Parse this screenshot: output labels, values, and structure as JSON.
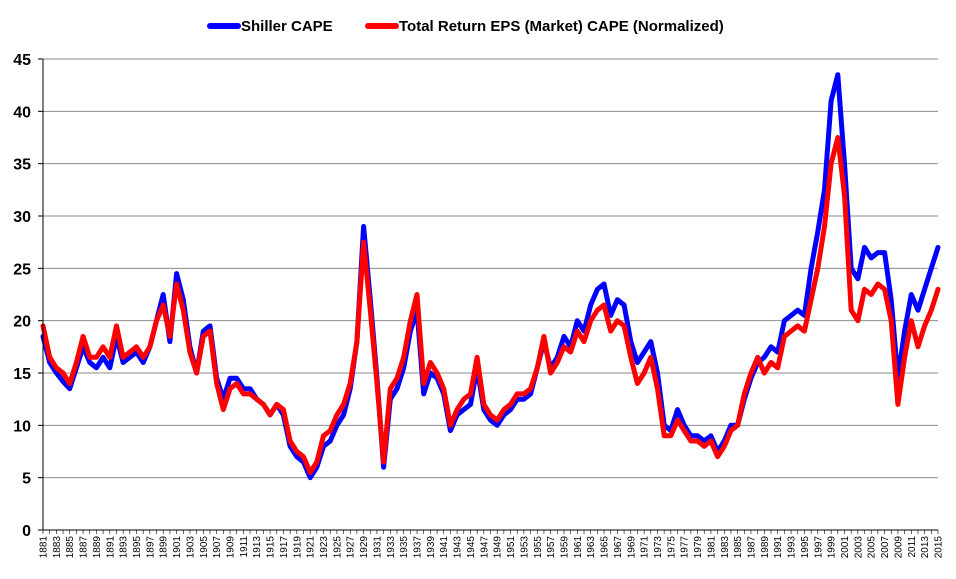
{
  "chart_data": {
    "type": "line",
    "title": "",
    "xlabel": "",
    "ylabel": "",
    "xlim": [
      1881,
      2015
    ],
    "ylim": [
      0,
      45
    ],
    "yticks": [
      0,
      5,
      10,
      15,
      20,
      25,
      30,
      35,
      40,
      45
    ],
    "xtick_labels": [
      "1881",
      "1883",
      "1885",
      "1887",
      "1889",
      "1891",
      "1893",
      "1895",
      "1897",
      "1899",
      "1901",
      "1903",
      "1905",
      "1907",
      "1909",
      "1911",
      "1913",
      "1915",
      "1917",
      "1919",
      "1921",
      "1923",
      "1925",
      "1927",
      "1929",
      "1931",
      "1933",
      "1935",
      "1937",
      "1939",
      "1941",
      "1943",
      "1945",
      "1947",
      "1949",
      "1951",
      "1953",
      "1955",
      "1957",
      "1959",
      "1961",
      "1963",
      "1965",
      "1967",
      "1969",
      "1971",
      "1973",
      "1975",
      "1977",
      "1979",
      "1981",
      "1983",
      "1985",
      "1987",
      "1989",
      "1991",
      "1993",
      "1995",
      "1997",
      "1999",
      "2001",
      "2003",
      "2005",
      "2007",
      "2009",
      "2011",
      "2013",
      "2015"
    ],
    "grid": true,
    "legend_position": "top-center",
    "series": [
      {
        "name": "Shiller CAPE",
        "color": "#0000ff",
        "x": [
          1881,
          1882,
          1883,
          1884,
          1885,
          1886,
          1887,
          1888,
          1889,
          1890,
          1891,
          1892,
          1893,
          1894,
          1895,
          1896,
          1897,
          1898,
          1899,
          1900,
          1901,
          1902,
          1903,
          1904,
          1905,
          1906,
          1907,
          1908,
          1909,
          1910,
          1911,
          1912,
          1913,
          1914,
          1915,
          1916,
          1917,
          1918,
          1919,
          1920,
          1921,
          1922,
          1923,
          1924,
          1925,
          1926,
          1927,
          1928,
          1929,
          1930,
          1931,
          1932,
          1933,
          1934,
          1935,
          1936,
          1937,
          1938,
          1939,
          1940,
          1941,
          1942,
          1943,
          1944,
          1945,
          1946,
          1947,
          1948,
          1949,
          1950,
          1951,
          1952,
          1953,
          1954,
          1955,
          1956,
          1957,
          1958,
          1959,
          1960,
          1961,
          1962,
          1963,
          1964,
          1965,
          1966,
          1967,
          1968,
          1969,
          1970,
          1971,
          1972,
          1973,
          1974,
          1975,
          1976,
          1977,
          1978,
          1979,
          1980,
          1981,
          1982,
          1983,
          1984,
          1985,
          1986,
          1987,
          1988,
          1989,
          1990,
          1991,
          1992,
          1993,
          1994,
          1995,
          1996,
          1997,
          1998,
          1999,
          2000,
          2001,
          2002,
          2003,
          2004,
          2005,
          2006,
          2007,
          2008,
          2009,
          2010,
          2011,
          2012,
          2013,
          2014,
          2015
        ],
        "values": [
          18.5,
          16.0,
          15.0,
          14.2,
          13.5,
          15.5,
          17.5,
          16.0,
          15.5,
          16.5,
          15.5,
          18.5,
          16.0,
          16.5,
          17.0,
          16.0,
          17.5,
          20.0,
          22.5,
          18.0,
          24.5,
          22.0,
          17.5,
          15.0,
          19.0,
          19.5,
          14.5,
          12.5,
          14.5,
          14.5,
          13.5,
          13.5,
          12.5,
          12.0,
          11.0,
          12.0,
          11.0,
          8.0,
          7.0,
          6.5,
          5.0,
          6.0,
          8.0,
          8.5,
          10.0,
          11.0,
          13.5,
          18.0,
          29.0,
          22.0,
          14.5,
          6.0,
          12.5,
          13.5,
          15.5,
          19.0,
          21.0,
          13.0,
          15.0,
          14.5,
          13.0,
          9.5,
          11.0,
          11.5,
          12.0,
          15.5,
          11.5,
          10.5,
          10.0,
          11.0,
          11.5,
          12.5,
          12.5,
          13.0,
          15.5,
          18.0,
          15.5,
          16.5,
          18.5,
          17.5,
          20.0,
          19.0,
          21.5,
          23.0,
          23.5,
          20.5,
          22.0,
          21.5,
          18.0,
          16.0,
          17.0,
          18.0,
          15.0,
          10.0,
          9.5,
          11.5,
          10.0,
          9.0,
          9.0,
          8.5,
          9.0,
          7.5,
          8.5,
          10.0,
          10.0,
          12.5,
          14.5,
          16.0,
          16.5,
          17.5,
          17.0,
          20.0,
          20.5,
          21.0,
          20.5,
          25.0,
          28.5,
          32.5,
          41.0,
          43.5,
          35.0,
          25.0,
          24.0,
          27.0,
          26.0,
          26.5,
          26.5,
          22.0,
          14.5,
          19.0,
          22.5,
          21.0,
          23.0,
          25.0,
          27.0
        ]
      },
      {
        "name": "Total Return EPS (Market) CAPE (Normalized)",
        "color": "#ff0000",
        "x": [
          1881,
          1882,
          1883,
          1884,
          1885,
          1886,
          1887,
          1888,
          1889,
          1890,
          1891,
          1892,
          1893,
          1894,
          1895,
          1896,
          1897,
          1898,
          1899,
          1900,
          1901,
          1902,
          1903,
          1904,
          1905,
          1906,
          1907,
          1908,
          1909,
          1910,
          1911,
          1912,
          1913,
          1914,
          1915,
          1916,
          1917,
          1918,
          1919,
          1920,
          1921,
          1922,
          1923,
          1924,
          1925,
          1926,
          1927,
          1928,
          1929,
          1930,
          1931,
          1932,
          1933,
          1934,
          1935,
          1936,
          1937,
          1938,
          1939,
          1940,
          1941,
          1942,
          1943,
          1944,
          1945,
          1946,
          1947,
          1948,
          1949,
          1950,
          1951,
          1952,
          1953,
          1954,
          1955,
          1956,
          1957,
          1958,
          1959,
          1960,
          1961,
          1962,
          1963,
          1964,
          1965,
          1966,
          1967,
          1968,
          1969,
          1970,
          1971,
          1972,
          1973,
          1974,
          1975,
          1976,
          1977,
          1978,
          1979,
          1980,
          1981,
          1982,
          1983,
          1984,
          1985,
          1986,
          1987,
          1988,
          1989,
          1990,
          1991,
          1992,
          1993,
          1994,
          1995,
          1996,
          1997,
          1998,
          1999,
          2000,
          2001,
          2002,
          2003,
          2004,
          2005,
          2006,
          2007,
          2008,
          2009,
          2010,
          2011,
          2012,
          2013,
          2014,
          2015
        ],
        "values": [
          19.5,
          16.5,
          15.5,
          15.0,
          14.0,
          16.0,
          18.5,
          16.5,
          16.5,
          17.5,
          16.5,
          19.5,
          16.5,
          17.0,
          17.5,
          16.5,
          17.5,
          20.0,
          21.5,
          18.5,
          23.5,
          21.0,
          17.0,
          15.0,
          18.5,
          19.0,
          14.0,
          11.5,
          13.5,
          14.0,
          13.0,
          13.0,
          12.5,
          12.0,
          11.0,
          12.0,
          11.5,
          8.5,
          7.5,
          7.0,
          5.5,
          6.5,
          9.0,
          9.5,
          11.0,
          12.0,
          14.0,
          18.0,
          27.5,
          21.0,
          14.0,
          6.5,
          13.5,
          14.5,
          16.5,
          20.0,
          22.5,
          14.0,
          16.0,
          15.0,
          13.5,
          10.0,
          11.5,
          12.5,
          13.0,
          16.5,
          12.0,
          11.0,
          10.5,
          11.5,
          12.0,
          13.0,
          13.0,
          13.5,
          15.5,
          18.5,
          15.0,
          16.0,
          17.5,
          17.0,
          19.0,
          18.0,
          20.0,
          21.0,
          21.5,
          19.0,
          20.0,
          19.5,
          16.5,
          14.0,
          15.0,
          16.5,
          13.5,
          9.0,
          9.0,
          10.5,
          9.5,
          8.5,
          8.5,
          8.0,
          8.5,
          7.0,
          8.0,
          9.5,
          10.0,
          13.0,
          15.0,
          16.5,
          15.0,
          16.0,
          15.5,
          18.5,
          19.0,
          19.5,
          19.0,
          22.0,
          25.0,
          29.0,
          35.0,
          37.5,
          32.0,
          21.0,
          20.0,
          23.0,
          22.5,
          23.5,
          23.0,
          20.0,
          12.0,
          16.5,
          20.0,
          17.5,
          19.5,
          21.0,
          23.0
        ]
      }
    ]
  }
}
